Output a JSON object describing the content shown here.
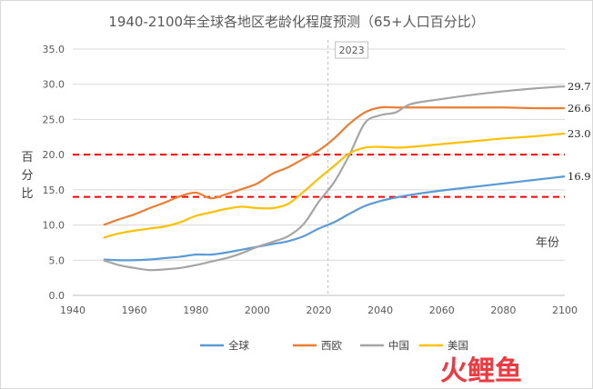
{
  "chart_data": {
    "type": "line",
    "title": "1940-2100年全球各地区老龄化程度预测（65+人口百分比）",
    "ylabel": "百分比",
    "xlabel": "年份",
    "xlim": [
      1940,
      2100
    ],
    "ylim": [
      0,
      35
    ],
    "x_ticks": [
      1940,
      1960,
      1980,
      2000,
      2020,
      2040,
      2060,
      2080,
      2100
    ],
    "y_ticks": [
      0.0,
      5.0,
      10.0,
      15.0,
      20.0,
      25.0,
      30.0,
      35.0
    ],
    "grid": "horizontal",
    "legend": "bottom",
    "reference_lines": [
      {
        "y": 20,
        "color": "#ff0000",
        "style": "dashed"
      },
      {
        "y": 14,
        "color": "#ff0000",
        "style": "dashed"
      }
    ],
    "marker_line": {
      "x": 2023,
      "label": "2023"
    },
    "series": [
      {
        "name": "全球",
        "color": "#5b9bd5",
        "end_label": "16.9",
        "points": [
          [
            1950,
            5.1
          ],
          [
            1955,
            5.0
          ],
          [
            1960,
            5.0
          ],
          [
            1965,
            5.1
          ],
          [
            1970,
            5.3
          ],
          [
            1975,
            5.5
          ],
          [
            1980,
            5.8
          ],
          [
            1985,
            5.8
          ],
          [
            1990,
            6.1
          ],
          [
            1995,
            6.5
          ],
          [
            2000,
            6.9
          ],
          [
            2005,
            7.3
          ],
          [
            2010,
            7.7
          ],
          [
            2015,
            8.4
          ],
          [
            2020,
            9.5
          ],
          [
            2025,
            10.4
          ],
          [
            2030,
            11.6
          ],
          [
            2035,
            12.7
          ],
          [
            2040,
            13.4
          ],
          [
            2045,
            13.9
          ],
          [
            2050,
            14.3
          ],
          [
            2060,
            14.9
          ],
          [
            2070,
            15.4
          ],
          [
            2080,
            15.9
          ],
          [
            2090,
            16.4
          ],
          [
            2100,
            16.9
          ]
        ]
      },
      {
        "name": "西欧",
        "color": "#ed7d31",
        "end_label": "26.6",
        "points": [
          [
            1950,
            10.0
          ],
          [
            1955,
            10.8
          ],
          [
            1960,
            11.5
          ],
          [
            1965,
            12.4
          ],
          [
            1970,
            13.2
          ],
          [
            1975,
            14.1
          ],
          [
            1980,
            14.6
          ],
          [
            1985,
            13.8
          ],
          [
            1990,
            14.4
          ],
          [
            1995,
            15.1
          ],
          [
            2000,
            15.9
          ],
          [
            2005,
            17.3
          ],
          [
            2010,
            18.2
          ],
          [
            2015,
            19.4
          ],
          [
            2020,
            20.6
          ],
          [
            2025,
            22.3
          ],
          [
            2030,
            24.4
          ],
          [
            2035,
            26.0
          ],
          [
            2040,
            26.7
          ],
          [
            2045,
            26.7
          ],
          [
            2050,
            26.7
          ],
          [
            2060,
            26.7
          ],
          [
            2070,
            26.7
          ],
          [
            2080,
            26.7
          ],
          [
            2090,
            26.6
          ],
          [
            2100,
            26.6
          ]
        ]
      },
      {
        "name": "中国",
        "color": "#a5a5a5",
        "end_label": "29.7",
        "points": [
          [
            1950,
            5.0
          ],
          [
            1955,
            4.3
          ],
          [
            1960,
            3.9
          ],
          [
            1965,
            3.6
          ],
          [
            1970,
            3.7
          ],
          [
            1975,
            3.9
          ],
          [
            1980,
            4.3
          ],
          [
            1985,
            4.8
          ],
          [
            1990,
            5.3
          ],
          [
            1995,
            6.0
          ],
          [
            2000,
            6.9
          ],
          [
            2005,
            7.6
          ],
          [
            2010,
            8.4
          ],
          [
            2015,
            10.1
          ],
          [
            2020,
            13.3
          ],
          [
            2025,
            16.1
          ],
          [
            2030,
            20.0
          ],
          [
            2035,
            24.5
          ],
          [
            2040,
            25.6
          ],
          [
            2045,
            26.0
          ],
          [
            2050,
            27.2
          ],
          [
            2060,
            27.9
          ],
          [
            2070,
            28.5
          ],
          [
            2080,
            29.0
          ],
          [
            2090,
            29.4
          ],
          [
            2100,
            29.7
          ]
        ]
      },
      {
        "name": "美国",
        "color": "#ffc000",
        "end_label": "23.0",
        "points": [
          [
            1950,
            8.2
          ],
          [
            1955,
            8.8
          ],
          [
            1960,
            9.2
          ],
          [
            1965,
            9.5
          ],
          [
            1970,
            9.8
          ],
          [
            1975,
            10.4
          ],
          [
            1980,
            11.3
          ],
          [
            1985,
            11.8
          ],
          [
            1990,
            12.3
          ],
          [
            1995,
            12.6
          ],
          [
            2000,
            12.4
          ],
          [
            2005,
            12.4
          ],
          [
            2010,
            13.0
          ],
          [
            2015,
            14.7
          ],
          [
            2020,
            16.6
          ],
          [
            2025,
            18.4
          ],
          [
            2030,
            20.2
          ],
          [
            2035,
            21.0
          ],
          [
            2040,
            21.1
          ],
          [
            2045,
            21.0
          ],
          [
            2050,
            21.1
          ],
          [
            2060,
            21.5
          ],
          [
            2070,
            21.9
          ],
          [
            2080,
            22.3
          ],
          [
            2090,
            22.6
          ],
          [
            2100,
            23.0
          ]
        ]
      }
    ]
  }
}
